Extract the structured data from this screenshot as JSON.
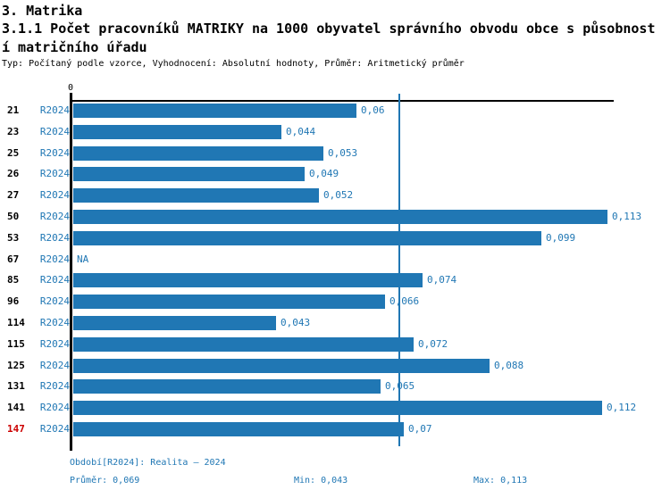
{
  "header": {
    "title": "3. Matrika",
    "subtitle_line1": "3.1.1 Počet pracovníků MATRIKY na 1000 obyvatel správního obvodu obce s působnost",
    "subtitle_line2": "í matričního úřadu",
    "meta": "Typ: Počítaný podle vzorce, Vyhodnocení: Absolutní hodnoty, Průměr: Aritmetický průměr"
  },
  "chart_data": {
    "type": "bar",
    "orientation": "horizontal",
    "title": "3.1.1 Počet pracovníků MATRIKY na 1000 obyvatel správního obvodu obce s působností matričního úřadu",
    "axis_zero_label": "0",
    "xlim": [
      0,
      0.115
    ],
    "grid": false,
    "series_label": "R2024",
    "categories": [
      "21",
      "23",
      "25",
      "26",
      "27",
      "50",
      "53",
      "67",
      "85",
      "96",
      "114",
      "115",
      "125",
      "131",
      "141",
      "147"
    ],
    "values": [
      0.06,
      0.044,
      0.053,
      0.049,
      0.052,
      0.113,
      0.099,
      null,
      0.074,
      0.066,
      0.043,
      0.072,
      0.088,
      0.065,
      0.112,
      0.07
    ],
    "value_labels": [
      "0,06",
      "0,044",
      "0,053",
      "0,049",
      "0,052",
      "0,113",
      "0,099",
      "NA",
      "0,074",
      "0,066",
      "0,043",
      "0,072",
      "0,088",
      "0,065",
      "0,112",
      "0,07"
    ],
    "na_label": "NA",
    "average_line_value": 0.069,
    "highlight_category": "147",
    "colors": {
      "bar": "#2077b4",
      "text_blue": "#2077b4",
      "highlight": "#cc0000",
      "axis": "#000000"
    }
  },
  "footer": {
    "period": "Období[R2024]: Realita – 2024",
    "average": "Průměr: 0,069",
    "min": "Min: 0,043",
    "max": "Max: 0,113"
  }
}
